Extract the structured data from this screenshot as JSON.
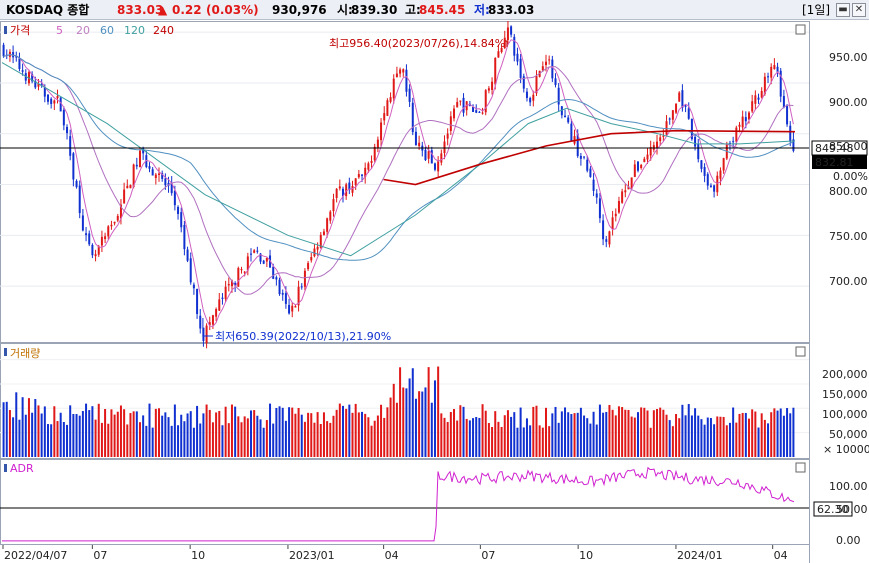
{
  "header": {
    "symbol": "KOSDAQ 종합",
    "price": "833.03",
    "change_arrow": "▲",
    "change": "0.22",
    "change_pct": "(0.03%)",
    "volume": "930,976",
    "open_label": "시:",
    "open": "839.30",
    "high_label": "고:",
    "high": "845.45",
    "low_label": "저:",
    "low": "833.03",
    "period": "[1일]",
    "colors": {
      "up": "#e01818",
      "down": "#1030d0"
    }
  },
  "price_panel": {
    "legend": {
      "price": "가격",
      "ma": [
        "5",
        "20",
        "60",
        "120",
        "240"
      ]
    },
    "annotation_high": "최고956.40(2023/07/26),14.84%",
    "annotation_low": "최저650.39(2022/10/13),21.90%",
    "label_last": "832.81",
    "label_ref": "849.48",
    "label_pct": "0.00%",
    "y_ticks": [
      "950.00",
      "900.00",
      "850.00",
      "800.00",
      "750.00",
      "700.00"
    ]
  },
  "volume_panel": {
    "title": "거래량",
    "y_ticks": [
      "200,000",
      "150,000",
      "100,000",
      "50,000"
    ],
    "unit": "× 10000"
  },
  "adr_panel": {
    "title": "ADR",
    "label_value": "62.30",
    "y_ticks": [
      "100.00",
      "50.00",
      "0.00"
    ]
  },
  "x_axis": [
    "2022/04/07",
    "07",
    "10",
    "2023/01",
    "04",
    "07",
    "10",
    "2024/01",
    "04"
  ],
  "chart_data": {
    "type": "candlestick",
    "title": "KOSDAQ 종합",
    "price_axis": {
      "ylim": [
        645,
        960
      ]
    },
    "price_path": [
      [
        "2022/04/07",
        935
      ],
      [
        "2022/05/15",
        890
      ],
      [
        "2022/06/01",
        880
      ],
      [
        "2022/06/25",
        745
      ],
      [
        "2022/07/01",
        725
      ],
      [
        "2022/07/20",
        760
      ],
      [
        "2022/08/15",
        830
      ],
      [
        "2022/09/15",
        790
      ],
      [
        "2022/10/13",
        650.39
      ],
      [
        "2022/11/01",
        690
      ],
      [
        "2022/12/01",
        735
      ],
      [
        "2022/12/15",
        720
      ],
      [
        "2023/01/02",
        670
      ],
      [
        "2023/01/20",
        720
      ],
      [
        "2023/02/15",
        790
      ],
      [
        "2023/03/15",
        810
      ],
      [
        "2023/04/10",
        900
      ],
      [
        "2023/04/20",
        910
      ],
      [
        "2023/05/01",
        840
      ],
      [
        "2023/05/20",
        820
      ],
      [
        "2023/06/10",
        880
      ],
      [
        "2023/07/01",
        870
      ],
      [
        "2023/07/26",
        956.4
      ],
      [
        "2023/08/15",
        880
      ],
      [
        "2023/08/31",
        930
      ],
      [
        "2023/09/20",
        860
      ],
      [
        "2023/10/15",
        800
      ],
      [
        "2023/10/26",
        745
      ],
      [
        "2023/11/15",
        800
      ],
      [
        "2023/12/01",
        825
      ],
      [
        "2023/12/20",
        850
      ],
      [
        "2024/01/05",
        890
      ],
      [
        "2024/01/20",
        830
      ],
      [
        "2024/02/05",
        790
      ],
      [
        "2024/02/20",
        840
      ],
      [
        "2024/03/10",
        870
      ],
      [
        "2024/03/25",
        905
      ],
      [
        "2024/04/05",
        915
      ],
      [
        "2024/04/16",
        845
      ],
      [
        "2024/04/22",
        833.03
      ]
    ],
    "ma120": [
      [
        "2022/04/07",
        920
      ],
      [
        "2022/07/15",
        860
      ],
      [
        "2022/10/15",
        790
      ],
      [
        "2023/01/01",
        750
      ],
      [
        "2023/03/01",
        730
      ],
      [
        "2023/05/01",
        770
      ],
      [
        "2023/07/01",
        820
      ],
      [
        "2023/08/15",
        860
      ],
      [
        "2023/09/20",
        875
      ],
      [
        "2023/11/01",
        860
      ],
      [
        "2023/12/15",
        850
      ],
      [
        "2024/01/20",
        840
      ],
      [
        "2024/03/01",
        840
      ],
      [
        "2024/04/22",
        843
      ]
    ],
    "ma240": [
      [
        "2023/04/01",
        805
      ],
      [
        "2023/05/01",
        800
      ],
      [
        "2023/07/01",
        820
      ],
      [
        "2023/09/01",
        838
      ],
      [
        "2023/11/01",
        850
      ],
      [
        "2024/01/01",
        853
      ],
      [
        "2024/04/22",
        852
      ]
    ],
    "volume": {
      "ylim": [
        0,
        230000
      ]
    },
    "adr": {
      "ylim": [
        -5,
        130
      ],
      "values": [
        [
          "2022/04/07",
          0
        ],
        [
          "2023/05/20",
          0
        ],
        [
          "2023/05/22",
          105
        ],
        [
          "2023/07/01",
          100
        ],
        [
          "2023/08/15",
          105
        ],
        [
          "2023/10/15",
          95
        ],
        [
          "2023/12/01",
          110
        ],
        [
          "2024/01/15",
          100
        ],
        [
          "2024/03/01",
          95
        ],
        [
          "2024/04/22",
          62.3
        ]
      ]
    }
  }
}
